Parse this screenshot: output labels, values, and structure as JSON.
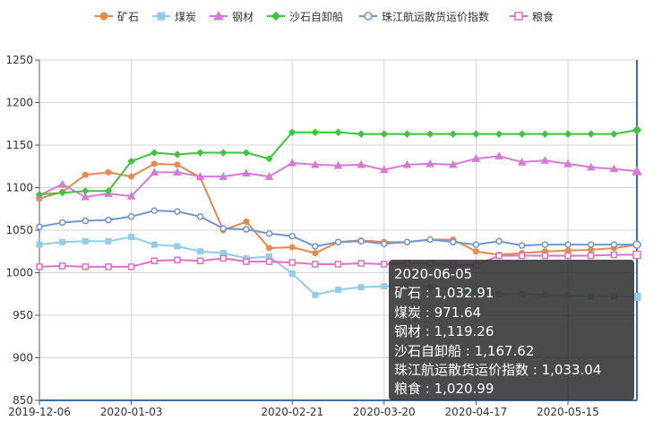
{
  "chart_data": {
    "type": "line",
    "x": [
      "2019-12-06",
      "2019-12-13",
      "2019-12-20",
      "2019-12-27",
      "2020-01-03",
      "2020-01-10",
      "2020-01-17",
      "2020-01-24",
      "2020-01-31",
      "2020-02-07",
      "2020-02-14",
      "2020-02-21",
      "2020-02-28",
      "2020-03-06",
      "2020-03-13",
      "2020-03-20",
      "2020-03-27",
      "2020-04-03",
      "2020-04-10",
      "2020-04-17",
      "2020-04-24",
      "2020-05-01",
      "2020-05-08",
      "2020-05-15",
      "2020-05-22",
      "2020-05-29",
      "2020-06-05"
    ],
    "x_tick_labels": [
      "2019-12-06",
      "2020-01-03",
      "2020-02-21",
      "2020-03-20",
      "2020-04-17",
      "2020-05-15"
    ],
    "ylim": [
      850,
      1250
    ],
    "y_ticks": [
      "850",
      "900",
      "950",
      "1000",
      "1050",
      "1100",
      "1150",
      "1200",
      "1250"
    ],
    "grid": true,
    "legend_position": "top",
    "series": [
      {
        "name": "矿石",
        "color": "#e8884f",
        "marker": "circle",
        "filled": true,
        "values": [
          1087,
          1095,
          1115,
          1118,
          1113,
          1128,
          1127,
          1112,
          1050,
          1060,
          1029,
          1030,
          1023,
          1036,
          1038,
          1036,
          1036,
          1039,
          1039,
          1025,
          1021,
          1023,
          1025,
          1026,
          1027,
          1029,
          1032.91
        ]
      },
      {
        "name": "煤炭",
        "color": "#8fcdeb",
        "marker": "square",
        "filled": true,
        "values": [
          1033,
          1036,
          1037,
          1037,
          1042,
          1033,
          1031,
          1025,
          1023,
          1017,
          1019,
          999,
          974,
          980,
          983,
          984,
          985,
          983,
          980,
          977,
          975,
          975,
          974,
          973,
          972,
          972,
          971.64
        ]
      },
      {
        "name": "钢材",
        "color": "#d77ad7",
        "marker": "triangle",
        "filled": true,
        "values": [
          1091,
          1104,
          1089,
          1093,
          1090,
          1118,
          1118,
          1113,
          1113,
          1117,
          1113,
          1129,
          1127,
          1126,
          1127,
          1121,
          1127,
          1128,
          1127,
          1134,
          1137,
          1130,
          1132,
          1128,
          1124,
          1122,
          1119.26
        ]
      },
      {
        "name": "沙石自卸船",
        "color": "#3ec43e",
        "marker": "diamond",
        "filled": true,
        "values": [
          1092,
          1094,
          1096,
          1096,
          1131,
          1141,
          1139,
          1141,
          1141,
          1141,
          1134,
          1165,
          1165,
          1165,
          1163,
          1163,
          1163,
          1163,
          1163,
          1163,
          1163,
          1163,
          1163,
          1163,
          1163,
          1163,
          1167.62
        ]
      },
      {
        "name": "珠江航运散货运价指数",
        "color": "#6f96d2",
        "marker": "circle",
        "filled": false,
        "values": [
          1054,
          1059,
          1061,
          1062,
          1066,
          1073,
          1072,
          1066,
          1052,
          1051,
          1046,
          1043,
          1031,
          1036,
          1037,
          1034,
          1036,
          1039,
          1036,
          1033,
          1037,
          1032,
          1033,
          1033,
          1033,
          1033,
          1033.04
        ]
      },
      {
        "name": "粮食",
        "color": "#e070c4",
        "marker": "square",
        "filled": false,
        "values": [
          1007,
          1008,
          1007,
          1007,
          1007,
          1014,
          1015,
          1014,
          1017,
          1013,
          1013,
          1012,
          1010,
          1010,
          1011,
          1010,
          1011,
          1011,
          1009,
          1009,
          1020,
          1020,
          1020,
          1020,
          1020,
          1021,
          1020.99
        ]
      }
    ]
  },
  "tooltip": {
    "date": "2020-06-05",
    "lines": [
      "矿石 : 1,032.91",
      "煤炭 : 971.64",
      "钢材 : 1,119.26",
      "沙石自卸船 : 1,167.62",
      "珠江航运散货运价指数 : 1,033.04",
      "粮食 : 1,020.99"
    ]
  }
}
